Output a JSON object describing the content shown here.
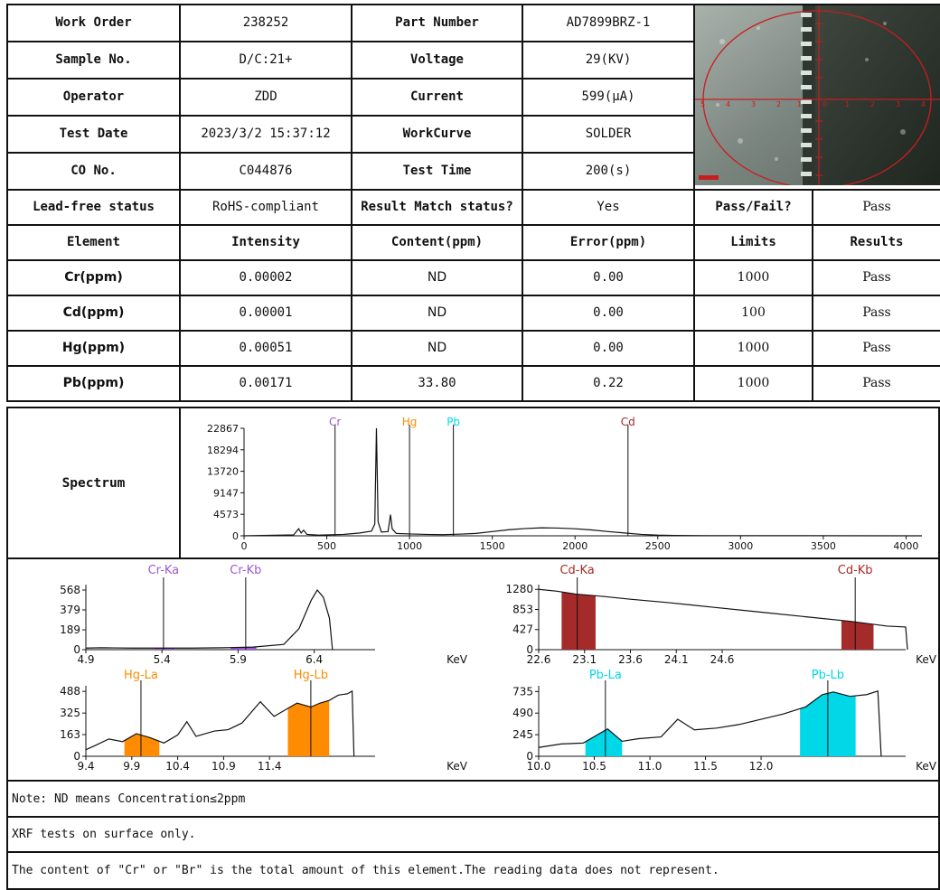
{
  "info": {
    "work_order_label": "Work Order",
    "work_order": "238252",
    "part_number_label": "Part Number",
    "part_number": "AD7899BRZ-1",
    "sample_label": "Sample No.",
    "sample": "D/C:21+",
    "voltage_label": "Voltage",
    "voltage": "29(KV)",
    "operator_label": "Operator",
    "operator": "ZDD",
    "current_label": "Current",
    "current": "599(μA)",
    "test_date_label": "Test Date",
    "test_date": "2023/3/2 15:37:12",
    "workcurve_label": "WorkCurve",
    "workcurve": "SOLDER",
    "co_label": "CO No.",
    "co": "C044876",
    "test_time_label": "Test Time",
    "test_time": "200(s)",
    "leadfree_label": "Lead-free status",
    "leadfree": "RoHS-compliant",
    "match_label": "Result Match status?",
    "match": "Yes",
    "passfail_label": "Pass/Fail?",
    "passfail": "Pass"
  },
  "results": {
    "headers": [
      "Element",
      "Intensity",
      "Content(ppm)",
      "Error(ppm)",
      "Limits",
      "Results"
    ],
    "rows": [
      {
        "element": "Cr(ppm)",
        "intensity": "0.00002",
        "content": "ND",
        "error": "0.00",
        "limit": "1000",
        "result": "Pass"
      },
      {
        "element": "Cd(ppm)",
        "intensity": "0.00001",
        "content": "ND",
        "error": "0.00",
        "limit": "100",
        "result": "Pass"
      },
      {
        "element": "Hg(ppm)",
        "intensity": "0.00051",
        "content": "ND",
        "error": "0.00",
        "limit": "1000",
        "result": "Pass"
      },
      {
        "element": "Pb(ppm)",
        "intensity": "0.00171",
        "content": "33.80",
        "error": "0.22",
        "limit": "1000",
        "result": "Pass"
      }
    ]
  },
  "spectrum_label": "Spectrum",
  "notes": [
    "Note: ND means Concentration≤2ppm",
    "XRF tests on surface only.",
    "The content of \"Cr\" or \"Br\" is the total amount of this element.The reading data does not represent."
  ],
  "colors": {
    "Cr": "#9b59d6",
    "Hg": "#ff8c00",
    "Pb": "#00d8e8",
    "Cd": "#a52a2a"
  },
  "chart_data": [
    {
      "type": "line",
      "name": "full-spectrum",
      "x_ticks": [
        0,
        500,
        1000,
        1500,
        2000,
        2500,
        3000,
        3500,
        4000
      ],
      "y_ticks": [
        0,
        4573,
        9147,
        13720,
        18294,
        22867
      ],
      "xlim": [
        0,
        4096
      ],
      "ylim": [
        0,
        22867
      ],
      "markers": [
        {
          "label": "Cr",
          "x": 550,
          "color": "#9b59d6"
        },
        {
          "label": "Hg",
          "x": 1000,
          "color": "#ff8c00"
        },
        {
          "label": "Pb",
          "x": 1265,
          "color": "#00d8e8"
        },
        {
          "label": "Cd",
          "x": 2320,
          "color": "#a52a2a"
        }
      ],
      "points": [
        [
          0,
          0
        ],
        [
          300,
          200
        ],
        [
          330,
          1500
        ],
        [
          345,
          600
        ],
        [
          360,
          1200
        ],
        [
          380,
          300
        ],
        [
          450,
          150
        ],
        [
          600,
          300
        ],
        [
          700,
          600
        ],
        [
          770,
          1000
        ],
        [
          790,
          2500
        ],
        [
          800,
          22867
        ],
        [
          810,
          3000
        ],
        [
          830,
          800
        ],
        [
          870,
          900
        ],
        [
          885,
          4500
        ],
        [
          895,
          1500
        ],
        [
          920,
          500
        ],
        [
          1000,
          400
        ],
        [
          1100,
          300
        ],
        [
          1200,
          250
        ],
        [
          1300,
          350
        ],
        [
          1400,
          500
        ],
        [
          1500,
          900
        ],
        [
          1600,
          1300
        ],
        [
          1700,
          1550
        ],
        [
          1800,
          1700
        ],
        [
          1900,
          1650
        ],
        [
          2000,
          1500
        ],
        [
          2100,
          1250
        ],
        [
          2200,
          900
        ],
        [
          2300,
          600
        ],
        [
          2400,
          300
        ],
        [
          2500,
          150
        ],
        [
          2600,
          80
        ],
        [
          2800,
          40
        ],
        [
          4096,
          0
        ]
      ]
    },
    {
      "type": "area",
      "name": "Cr-detail",
      "x_ticks": [
        4.9,
        5.4,
        5.9,
        6.4
      ],
      "xlabel": "KeV",
      "y_ticks": [
        0,
        189,
        379,
        568
      ],
      "xlim": [
        4.9,
        6.8
      ],
      "ylim": [
        0,
        620
      ],
      "markers": [
        {
          "label": "Cr-Ka",
          "x": 5.41,
          "color": "#9b59d6"
        },
        {
          "label": "Cr-Kb",
          "x": 5.95,
          "color": "#9b59d6"
        }
      ],
      "fill_color": "#9b59d6",
      "fills": [
        [
          5.35,
          5.48
        ],
        [
          5.85,
          6.02
        ]
      ],
      "points": [
        [
          4.9,
          15
        ],
        [
          5.0,
          18
        ],
        [
          5.2,
          15
        ],
        [
          5.4,
          15
        ],
        [
          5.6,
          15
        ],
        [
          5.8,
          18
        ],
        [
          6.0,
          25
        ],
        [
          6.2,
          50
        ],
        [
          6.3,
          200
        ],
        [
          6.38,
          470
        ],
        [
          6.42,
          568
        ],
        [
          6.46,
          500
        ],
        [
          6.5,
          300
        ],
        [
          6.52,
          0
        ]
      ]
    },
    {
      "type": "area",
      "name": "Cd-detail",
      "x_ticks": [
        22.6,
        23.1,
        23.6,
        24.1,
        24.6
      ],
      "xlabel": "KeV",
      "y_ticks": [
        0,
        427,
        853,
        1280
      ],
      "xlim": [
        22.6,
        26.6
      ],
      "ylim": [
        0,
        1380
      ],
      "markers": [
        {
          "label": "Cd-Ka",
          "x": 23.02,
          "color": "#a52a2a"
        },
        {
          "label": "Cd-Kb",
          "x": 26.05,
          "color": "#a52a2a"
        }
      ],
      "fill_color": "#a52a2a",
      "fills": [
        [
          22.85,
          23.22
        ],
        [
          25.9,
          26.25
        ]
      ],
      "points": [
        [
          22.6,
          1280
        ],
        [
          22.8,
          1240
        ],
        [
          23.0,
          1180
        ],
        [
          23.3,
          1130
        ],
        [
          23.6,
          1070
        ],
        [
          24.0,
          1000
        ],
        [
          24.5,
          900
        ],
        [
          25.0,
          800
        ],
        [
          25.5,
          700
        ],
        [
          26.0,
          600
        ],
        [
          26.4,
          500
        ],
        [
          26.6,
          480
        ],
        [
          26.62,
          0
        ]
      ]
    },
    {
      "type": "area",
      "name": "Hg-detail",
      "x_ticks": [
        9.4,
        9.9,
        10.4,
        10.9,
        11.4
      ],
      "xlabel": "KeV",
      "y_ticks": [
        0,
        163,
        325,
        488
      ],
      "xlim": [
        9.4,
        12.55
      ],
      "ylim": [
        0,
        530
      ],
      "markers": [
        {
          "label": "Hg-La",
          "x": 10.0,
          "color": "#ff8c00"
        },
        {
          "label": "Hg-Lb",
          "x": 11.85,
          "color": "#ff8c00"
        }
      ],
      "fill_color": "#ff8c00",
      "fills": [
        [
          9.82,
          10.2
        ],
        [
          11.6,
          12.05
        ]
      ],
      "points": [
        [
          9.4,
          50
        ],
        [
          9.5,
          80
        ],
        [
          9.65,
          130
        ],
        [
          9.8,
          110
        ],
        [
          9.95,
          170
        ],
        [
          10.1,
          140
        ],
        [
          10.25,
          100
        ],
        [
          10.4,
          160
        ],
        [
          10.5,
          260
        ],
        [
          10.6,
          150
        ],
        [
          10.8,
          190
        ],
        [
          10.95,
          200
        ],
        [
          11.1,
          250
        ],
        [
          11.3,
          410
        ],
        [
          11.45,
          300
        ],
        [
          11.6,
          360
        ],
        [
          11.7,
          400
        ],
        [
          11.85,
          370
        ],
        [
          11.95,
          400
        ],
        [
          12.05,
          420
        ],
        [
          12.15,
          460
        ],
        [
          12.25,
          470
        ],
        [
          12.3,
          490
        ],
        [
          12.32,
          0
        ]
      ]
    },
    {
      "type": "area",
      "name": "Pb-detail",
      "x_ticks": [
        10.0,
        10.5,
        11.0,
        11.5,
        12.0
      ],
      "xlabel": "KeV",
      "y_ticks": [
        0,
        245,
        490,
        735
      ],
      "xlim": [
        10.0,
        13.3
      ],
      "ylim": [
        0,
        800
      ],
      "markers": [
        {
          "label": "Pb-La",
          "x": 10.6,
          "color": "#00d8e8"
        },
        {
          "label": "Pb-Lb",
          "x": 12.6,
          "color": "#00d8e8"
        }
      ],
      "fill_color": "#00d8e8",
      "fills": [
        [
          10.42,
          10.75
        ],
        [
          12.35,
          12.85
        ]
      ],
      "points": [
        [
          10.0,
          100
        ],
        [
          10.2,
          140
        ],
        [
          10.4,
          150
        ],
        [
          10.55,
          260
        ],
        [
          10.62,
          310
        ],
        [
          10.75,
          170
        ],
        [
          10.9,
          200
        ],
        [
          11.1,
          220
        ],
        [
          11.25,
          420
        ],
        [
          11.4,
          300
        ],
        [
          11.6,
          320
        ],
        [
          11.8,
          360
        ],
        [
          12.0,
          420
        ],
        [
          12.2,
          480
        ],
        [
          12.4,
          560
        ],
        [
          12.55,
          700
        ],
        [
          12.65,
          730
        ],
        [
          12.8,
          680
        ],
        [
          12.95,
          700
        ],
        [
          13.05,
          740
        ],
        [
          13.08,
          0
        ]
      ]
    }
  ]
}
